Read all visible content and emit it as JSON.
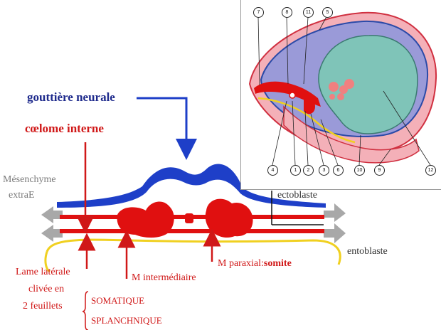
{
  "diagram": {
    "labels": {
      "gouttiere": "gouttière neurale",
      "coelome": "cœlome interne",
      "mesenchyme_1": "Mésenchyme",
      "mesenchyme_2": "extraE",
      "ectoblaste": "ectoblaste",
      "entoblaste": "entoblaste",
      "lame_1": "Lame latérale",
      "lame_2": "clivée en",
      "lame_3": "2 feuillets",
      "m_intermediaire": "M intermédiaire",
      "m_paraxial": "M paraxial:",
      "somite": "somite",
      "somatique": "SOMATIQUE",
      "splanchnique": "SPLANCHNIQUE"
    },
    "inset_callouts": [
      "7",
      "8",
      "11",
      "5",
      "4",
      "1",
      "2",
      "3",
      "6",
      "10",
      "9",
      "12"
    ],
    "colors": {
      "ectoderm": "#1e3fc8",
      "mesoderm": "#e01010",
      "endoderm": "#f0d020",
      "arrow_grey": "#a8a8a8",
      "amnion": "#9a9ad8",
      "yolk": "#7fc4b8",
      "outer": "#f4b0b8"
    }
  }
}
